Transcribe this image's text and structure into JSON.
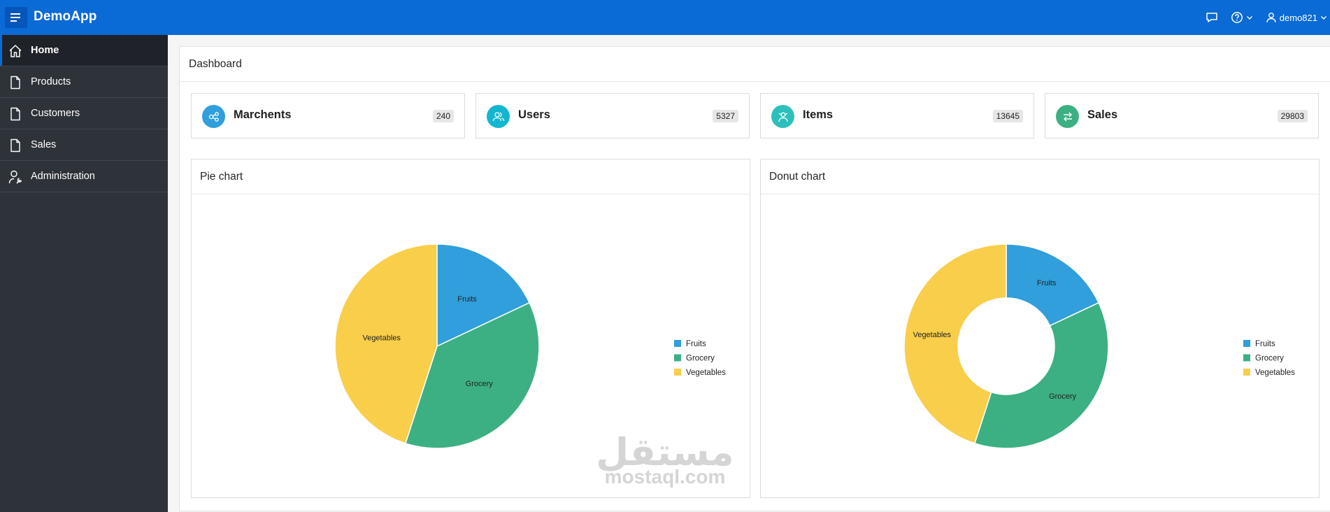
{
  "app": {
    "title": "DemoApp"
  },
  "topbar": {
    "username": "demo821"
  },
  "sidebar": {
    "items": [
      {
        "label": "Home",
        "icon": "home-icon",
        "active": true
      },
      {
        "label": "Products",
        "icon": "document-icon",
        "active": false
      },
      {
        "label": "Customers",
        "icon": "document-icon",
        "active": false
      },
      {
        "label": "Sales",
        "icon": "document-icon",
        "active": false
      },
      {
        "label": "Administration",
        "icon": "user-wrench-icon",
        "active": false
      }
    ]
  },
  "dashboard": {
    "title": "Dashboard",
    "cards": [
      {
        "label": "Marchents",
        "count": "240",
        "icon": "share-nodes-icon",
        "color": "#309fdb"
      },
      {
        "label": "Users",
        "count": "5327",
        "icon": "users-icon",
        "color": "#13b6cf"
      },
      {
        "label": "Items",
        "count": "13645",
        "icon": "items-icon",
        "color": "#2ebfbc"
      },
      {
        "label": "Sales",
        "count": "29803",
        "icon": "exchange-arrows-icon",
        "color": "#3cb082"
      }
    ]
  },
  "panels": {
    "pie_title": "Pie chart",
    "donut_title": "Donut chart"
  },
  "watermark": {
    "arabic": "مستقل",
    "latin": "mostaql.com"
  },
  "chart_data": [
    {
      "type": "pie",
      "title": "Pie chart",
      "categories": [
        "Fruits",
        "Grocery",
        "Vegetables"
      ],
      "values": [
        18,
        37,
        45
      ],
      "colors": [
        "#309fdb",
        "#3cb082",
        "#f9ce4a"
      ],
      "legend": "right"
    },
    {
      "type": "pie",
      "variant": "donut",
      "title": "Donut chart",
      "categories": [
        "Fruits",
        "Grocery",
        "Vegetables"
      ],
      "values": [
        18,
        37,
        45
      ],
      "colors": [
        "#309fdb",
        "#3cb082",
        "#f9ce4a"
      ],
      "legend": "right"
    }
  ]
}
